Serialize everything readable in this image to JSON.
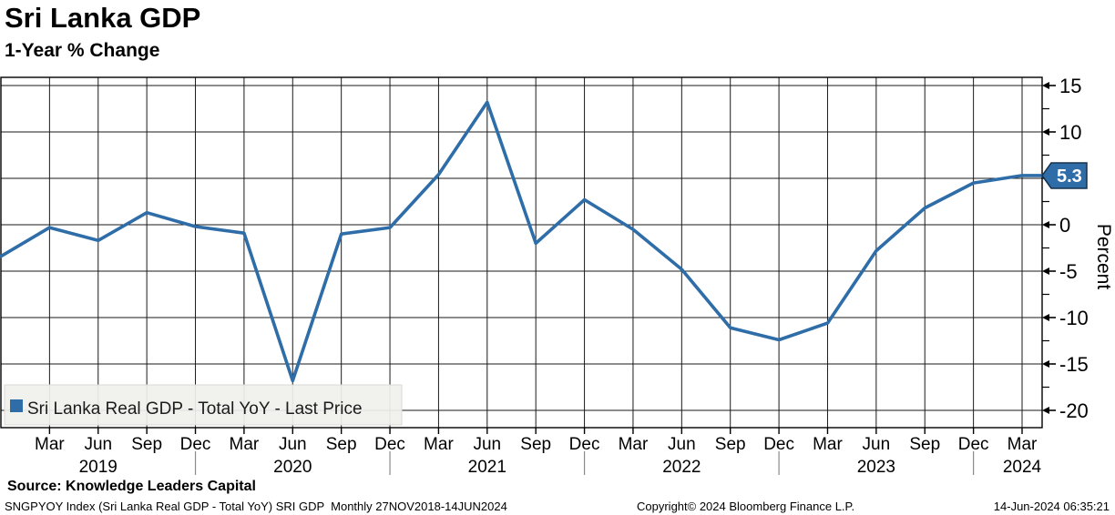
{
  "header": {
    "title": "Sri Lanka GDP",
    "subtitle": "1-Year % Change"
  },
  "legend": {
    "marker_color": "#2e6da8",
    "label": "Sri Lanka Real GDP - Total YoY - Last Price"
  },
  "y_axis": {
    "label": "Percent",
    "major_ticks": [
      15,
      10,
      5,
      0,
      -5,
      -10,
      -15,
      -20
    ],
    "last_price_label": "5.3"
  },
  "footer": {
    "source": "Source: Knowledge Leaders Capital",
    "ticker_info": "SNGPYOY Index (Sri Lanka Real GDP - Total YoY) SRI GDP  Monthly 27NOV2018-14JUN2024",
    "copyright": "Copyright© 2024 Bloomberg Finance L.P.",
    "timestamp": "14-Jun-2024 06:35:21"
  },
  "chart_data": {
    "type": "line",
    "title": "Sri Lanka GDP",
    "subtitle": "1-Year % Change",
    "ylabel": "Percent",
    "ylim": [
      -21.5,
      16
    ],
    "grid": true,
    "legend_position": "bottom-left",
    "line_color": "#2e6da8",
    "series": [
      {
        "name": "Sri Lanka Real GDP - Total YoY - Last Price",
        "x": [
          "Dec 2018",
          "Mar 2019",
          "Jun 2019",
          "Sep 2019",
          "Dec 2019",
          "Mar 2020",
          "Jun 2020",
          "Sep 2020",
          "Dec 2020",
          "Mar 2021",
          "Jun 2021",
          "Sep 2021",
          "Dec 2021",
          "Mar 2022",
          "Jun 2022",
          "Sep 2022",
          "Dec 2022",
          "Mar 2023",
          "Jun 2023",
          "Sep 2023",
          "Dec 2023",
          "Mar 2024"
        ],
        "values": [
          -3.4,
          -0.3,
          -1.7,
          1.3,
          -0.2,
          -0.9,
          -16.8,
          -1.0,
          -0.3,
          5.4,
          13.2,
          -2.0,
          2.7,
          -0.5,
          -4.8,
          -11.1,
          -12.4,
          -10.6,
          -2.8,
          1.8,
          4.5,
          5.3
        ]
      }
    ],
    "tick_labels": [
      "",
      "Mar",
      "Jun",
      "Sep",
      "Dec",
      "Mar",
      "Jun",
      "Sep",
      "Dec",
      "Mar",
      "Jun",
      "Sep",
      "Dec",
      "Mar",
      "Jun",
      "Sep",
      "Dec",
      "Mar",
      "Jun",
      "Sep",
      "Dec",
      "Mar"
    ],
    "years": [
      {
        "label": "2019",
        "tick_index": 2
      },
      {
        "label": "2020",
        "tick_index": 6
      },
      {
        "label": "2021",
        "tick_index": 10
      },
      {
        "label": "2022",
        "tick_index": 14
      },
      {
        "label": "2023",
        "tick_index": 18
      },
      {
        "label": "2024",
        "tick_index": 21
      }
    ],
    "year_separator_indices": [
      4,
      8,
      12,
      16,
      20
    ],
    "last_price": 5.3
  }
}
